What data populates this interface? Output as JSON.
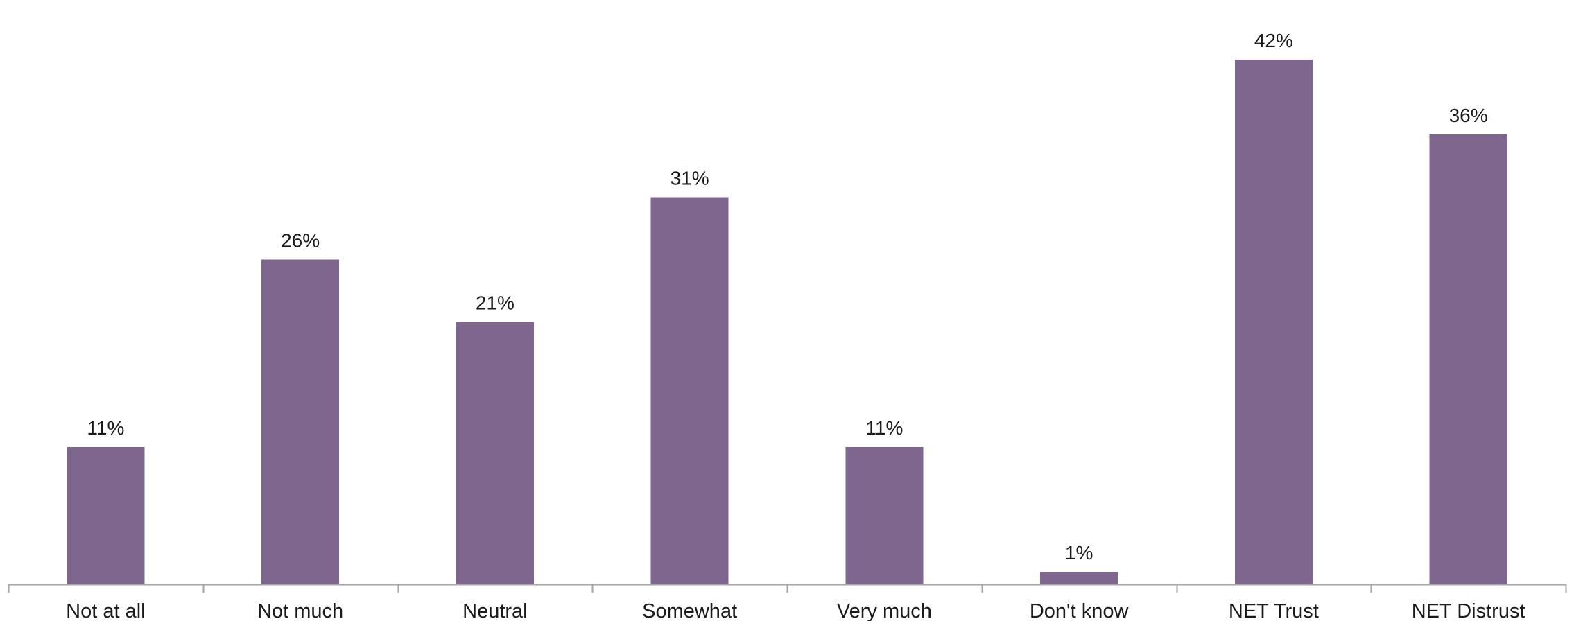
{
  "chart_data": {
    "type": "bar",
    "title": "",
    "xlabel": "",
    "ylabel": "",
    "categories": [
      "Not at all",
      "Not much",
      "Neutral",
      "Somewhat",
      "Very much",
      "Don't know",
      "NET Trust",
      "NET Distrust"
    ],
    "values": [
      11,
      26,
      21,
      31,
      11,
      1,
      42,
      36
    ],
    "data_labels": [
      "11%",
      "26%",
      "21%",
      "31%",
      "11%",
      "1%",
      "42%",
      "36%"
    ],
    "unit": "%",
    "ylim": [
      0,
      44
    ],
    "grid": false,
    "legend": "none",
    "bar_color": "#7e668e",
    "axis_color": "#a6a6a6"
  }
}
